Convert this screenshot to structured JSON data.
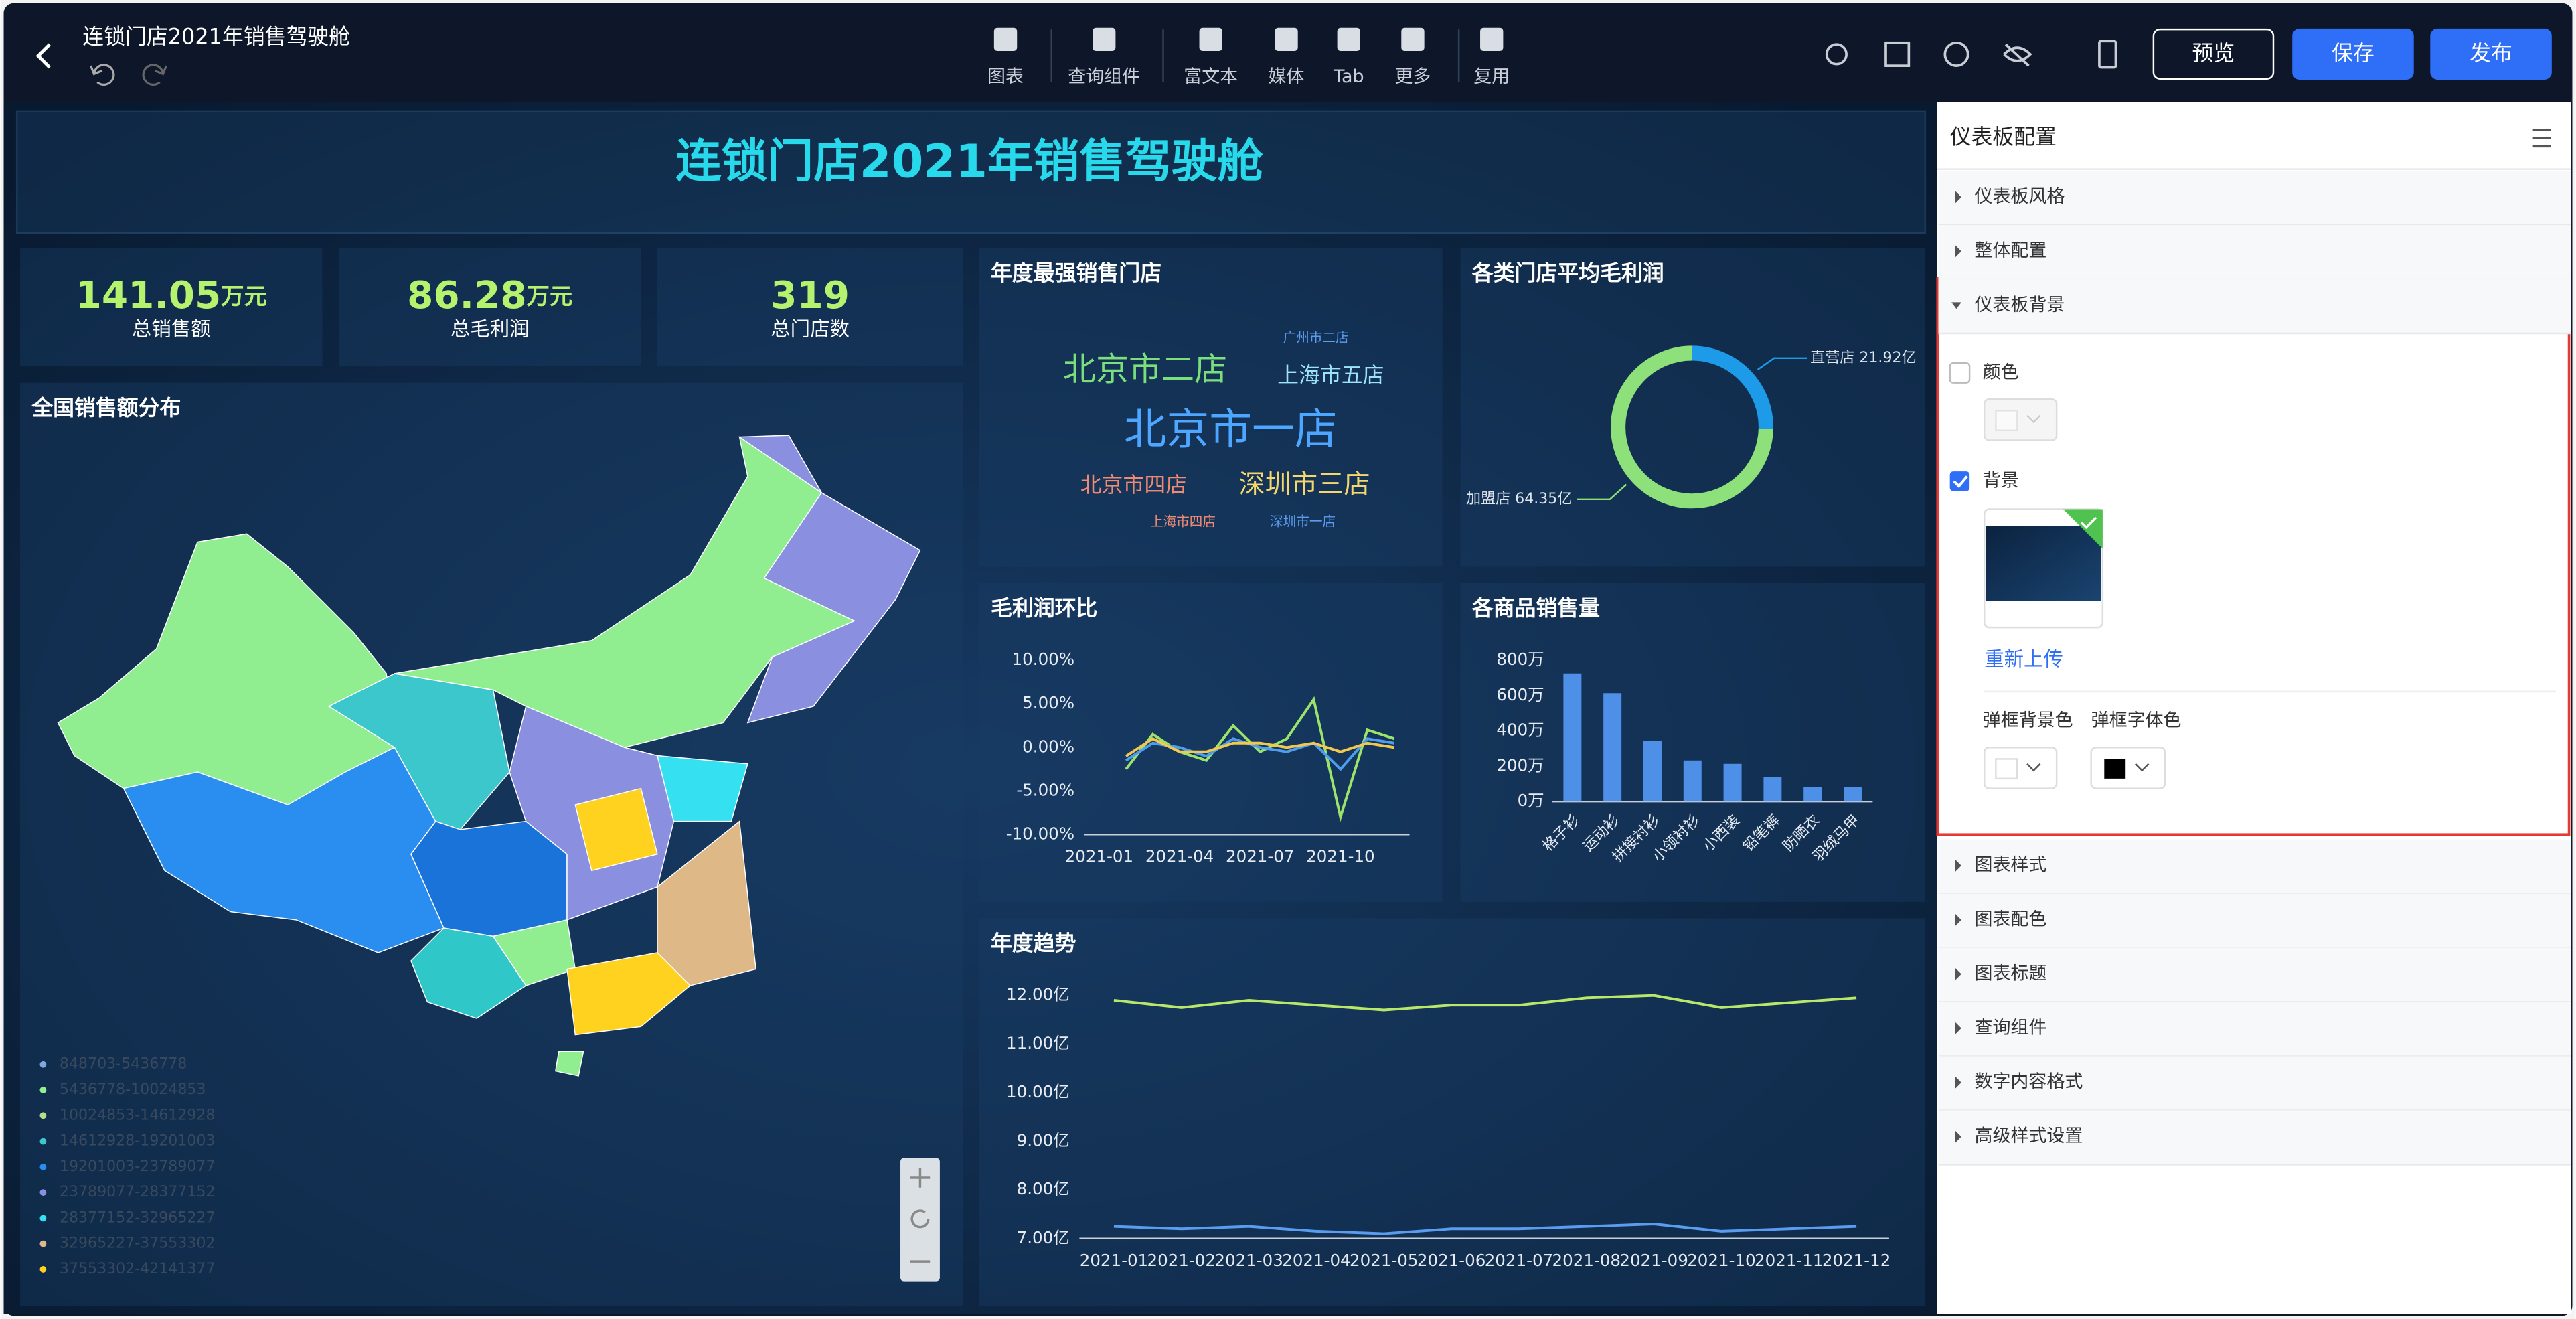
{
  "header": {
    "title": "连锁门店2021年销售驾驶舱",
    "tools": [
      "图表",
      "查询组件",
      "富文本",
      "媒体",
      "Tab",
      "更多",
      "复用"
    ],
    "buttons": [
      "预览",
      "保存",
      "发布"
    ]
  },
  "panel": {
    "title": "仪表板配置",
    "sections": [
      "仪表板风格",
      "整体配置",
      "仪表板背景"
    ],
    "background": {
      "color_label": "颜色",
      "image_label": "背景",
      "reupload": "重新上传",
      "popup_bg": "弹框背景色",
      "popup_font": "弹框字体色"
    },
    "more_sections": [
      "图表样式",
      "图表配色",
      "图表标题",
      "查询组件",
      "数字内容格式",
      "高级样式设置"
    ]
  },
  "dashboard": {
    "title": "连锁门店2021年销售驾驶舱",
    "kpis": [
      {
        "value": "141.05",
        "unit": "万元",
        "label": "总销售额"
      },
      {
        "value": "86.28",
        "unit": "万元",
        "label": "总毛利润"
      },
      {
        "value": "319",
        "unit": "",
        "label": "总门店数"
      }
    ]
  },
  "chart_data": [
    {
      "type": "map",
      "title": "全国销售额分布",
      "legend": [
        "848703-5436778",
        "5436778-10024853",
        "10024853-14612928",
        "14612928-19201003",
        "19201003-23789077",
        "23789077-28377152",
        "28377152-32965227",
        "32965227-37553302",
        "37553302-42141377"
      ]
    },
    {
      "type": "wordcloud",
      "title": "年度最强销售门店",
      "words": [
        "北京市一店",
        "北京市二店",
        "上海市五店",
        "深圳市三店",
        "北京市四店",
        "广州市二店",
        "上海市四店",
        "深圳市一店"
      ]
    },
    {
      "type": "pie",
      "title": "各类门店平均毛利润",
      "donut": true,
      "categories": [
        "直营店",
        "加盟店"
      ],
      "values": [
        21.92,
        64.35
      ],
      "value_labels": [
        "21.92亿",
        "64.35亿"
      ],
      "colors": [
        "#1e9be8",
        "#8ee07b"
      ]
    },
    {
      "type": "line",
      "title": "毛利润环比",
      "categories": [
        "2021-01",
        null,
        null,
        "2021-04",
        null,
        null,
        "2021-07",
        null,
        null,
        "2021-10",
        null,
        null
      ],
      "series": [
        {
          "color": "#9be36a",
          "values": [
            null,
            -2.5,
            1.5,
            -0.5,
            -1.5,
            2.5,
            -0.5,
            1,
            5.5,
            -8,
            2,
            1
          ]
        },
        {
          "color": "#4d9ef0",
          "values": [
            null,
            -1.5,
            0.5,
            0,
            -1,
            1,
            0,
            -0.5,
            0.5,
            -2.5,
            1,
            0.5
          ]
        },
        {
          "color": "#f2c94c",
          "values": [
            null,
            -1,
            1,
            -0.5,
            -0.5,
            0.5,
            0.5,
            0,
            0.5,
            -0.5,
            0.5,
            0
          ]
        }
      ],
      "ylim": [
        -10,
        10
      ],
      "yticks": [
        {
          "value": -10,
          "label": "-10.00%"
        },
        {
          "value": -5,
          "label": "-5.00%"
        },
        {
          "value": 0,
          "label": "0.00%"
        },
        {
          "value": 5,
          "label": "5.00%"
        },
        {
          "value": 10,
          "label": "10.00%"
        }
      ],
      "grid": false
    },
    {
      "type": "bar",
      "title": "各商品销售量",
      "categories": [
        "格子衫",
        "运动衫",
        "拼接衬衫",
        "小领衬衫",
        "小西装",
        "铅笔裤",
        "防晒衣",
        "羽绒马甲"
      ],
      "values": [
        726,
        614,
        344,
        233,
        214,
        140,
        84,
        84
      ],
      "color": "#4e8fe8",
      "ylim": [
        0,
        800
      ],
      "yticks": [
        {
          "value": 0,
          "label": "0万"
        },
        {
          "value": 200,
          "label": "200万"
        },
        {
          "value": 400,
          "label": "400万"
        },
        {
          "value": 600,
          "label": "600万"
        },
        {
          "value": 800,
          "label": "800万"
        }
      ],
      "grid": false
    },
    {
      "type": "line",
      "title": "年度趋势",
      "categories": [
        "2021-01",
        "2021-02",
        "2021-03",
        "2021-04",
        "2021-05",
        "2021-06",
        "2021-07",
        "2021-08",
        "2021-09",
        "2021-10",
        "2021-11",
        "2021-12"
      ],
      "series": [
        {
          "color": "#b8e86a",
          "values": [
            11.9,
            11.75,
            11.9,
            11.8,
            11.7,
            11.8,
            11.8,
            11.95,
            12.0,
            11.75,
            11.85,
            11.95
          ]
        },
        {
          "color": "#5a9cf0",
          "values": [
            7.25,
            7.2,
            7.25,
            7.15,
            7.1,
            7.2,
            7.2,
            7.25,
            7.3,
            7.15,
            7.2,
            7.25
          ]
        }
      ],
      "ylim": [
        7,
        12
      ],
      "yticks": [
        {
          "value": 7,
          "label": "7.00亿"
        },
        {
          "value": 8,
          "label": "8.00亿"
        },
        {
          "value": 9,
          "label": "9.00亿"
        },
        {
          "value": 10,
          "label": "10.00亿"
        },
        {
          "value": 11,
          "label": "11.00亿"
        },
        {
          "value": 12,
          "label": "12.00亿"
        }
      ],
      "grid": false
    }
  ]
}
